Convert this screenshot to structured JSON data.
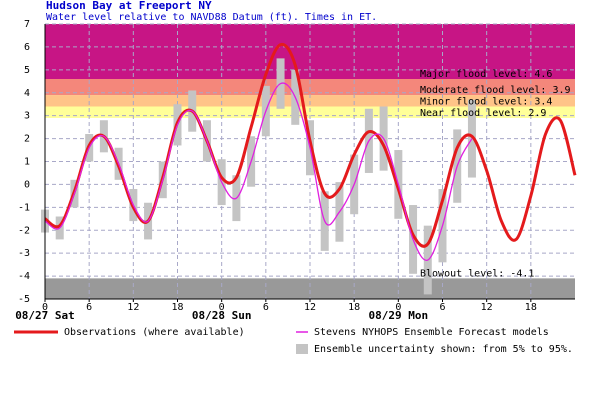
{
  "chart_data": {
    "type": "line",
    "title": "Hudson Bay at Freeport NY",
    "subtitle": "Water level relative to NAVD88 Datum (ft). Times in ET.",
    "xlim": [
      0,
      72
    ],
    "ylim": [
      -5,
      7
    ],
    "yticks": [
      -5,
      -4,
      -3,
      -2,
      -1,
      0,
      1,
      2,
      3,
      4,
      5,
      6,
      7
    ],
    "xticks": [
      0,
      6,
      12,
      18,
      {
        "value": 24,
        "label": "0"
      },
      {
        "value": 30,
        "label": "6"
      },
      {
        "value": 36,
        "label": "12"
      },
      {
        "value": 42,
        "label": "18"
      },
      {
        "value": 48,
        "label": "0"
      },
      {
        "value": 54,
        "label": "6"
      },
      {
        "value": 60,
        "label": "12"
      },
      {
        "value": 66,
        "label": "18"
      }
    ],
    "day_labels": [
      {
        "value": 0,
        "label": "08/27 Sat"
      },
      {
        "value": 24,
        "label": "08/28 Sun"
      },
      {
        "value": 48,
        "label": "08/29 Mon"
      }
    ],
    "grid": true,
    "flood_levels": [
      {
        "label": "Major flood level: 4.6",
        "value": 4.6,
        "color": "#c71585"
      },
      {
        "label": "Moderate flood level: 3.9",
        "value": 3.9,
        "color": "#f4877b"
      },
      {
        "label": "Minor flood level: 3.4",
        "value": 3.4,
        "color": "#ffc488"
      },
      {
        "label": "Near flood level: 2.9",
        "value": 2.9,
        "color": "#ffff99"
      }
    ],
    "blowout_level": {
      "label": "Blowout level: -4.1",
      "value": -4.1,
      "color": "#999999"
    },
    "series": [
      {
        "name": "Observations (where available)",
        "color": "#e41a1c",
        "x": [
          0,
          2,
          4,
          6,
          8,
          10,
          12,
          14,
          16,
          18,
          20,
          22,
          24,
          26,
          28,
          30,
          32,
          34,
          36,
          38,
          40,
          42,
          44,
          46,
          48,
          50,
          52,
          54,
          56,
          58,
          60,
          62,
          64,
          66,
          68,
          70,
          72
        ],
        "values": [
          -1.5,
          -1.8,
          -0.3,
          1.7,
          2.1,
          0.8,
          -1.0,
          -1.6,
          0.3,
          2.7,
          3.2,
          1.9,
          0.3,
          0.3,
          2.5,
          4.8,
          6.1,
          5.2,
          1.9,
          -0.4,
          -0.2,
          1.3,
          2.3,
          1.7,
          -0.2,
          -2.2,
          -2.6,
          -0.7,
          1.6,
          2.1,
          0.6,
          -1.6,
          -2.4,
          -0.5,
          2.2,
          2.8,
          0.4
        ]
      },
      {
        "name": "Stevens NYHOPS Ensemble Forecast models",
        "color": "#e020e0",
        "x": [
          0,
          2,
          4,
          6,
          8,
          10,
          12,
          14,
          16,
          18,
          20,
          22,
          24,
          26,
          28,
          30,
          32,
          34,
          36,
          38,
          40,
          42,
          44,
          46,
          48,
          50,
          52,
          54,
          56,
          58
        ],
        "values": [
          -1.6,
          -1.9,
          -0.4,
          1.6,
          2.1,
          0.9,
          -0.9,
          -1.6,
          0.2,
          2.6,
          3.2,
          1.9,
          0.1,
          -0.6,
          1.0,
          3.2,
          4.4,
          3.8,
          1.6,
          -1.6,
          -1.2,
          0.0,
          1.9,
          2.0,
          0.0,
          -2.4,
          -3.3,
          -1.8,
          0.8,
          2.0
        ]
      },
      {
        "name": "Ensemble uncertainty shown: from 5% to 95%.",
        "color": "#c4c4c4",
        "x": [
          0,
          2,
          4,
          6,
          8,
          10,
          12,
          14,
          16,
          18,
          20,
          22,
          24,
          26,
          28,
          30,
          32,
          34,
          36,
          38,
          40,
          42,
          44,
          46,
          48,
          50,
          52,
          54,
          56,
          58
        ],
        "low": [
          -2.1,
          -2.4,
          -1.0,
          1.0,
          1.4,
          0.2,
          -1.6,
          -2.4,
          -0.6,
          1.7,
          2.3,
          1.0,
          -0.9,
          -1.6,
          -0.1,
          2.1,
          3.3,
          2.6,
          0.4,
          -2.9,
          -2.5,
          -1.3,
          0.5,
          0.6,
          -1.5,
          -3.9,
          -4.8,
          -3.4,
          -0.8,
          0.3
        ],
        "high": [
          -1.1,
          -1.4,
          0.2,
          2.2,
          2.8,
          1.6,
          -0.2,
          -0.8,
          1.0,
          3.5,
          4.1,
          2.8,
          1.1,
          0.4,
          2.1,
          4.3,
          5.5,
          5.0,
          2.8,
          -0.3,
          0.1,
          1.3,
          3.3,
          3.4,
          1.5,
          -0.9,
          -1.8,
          -0.2,
          2.4,
          3.7
        ]
      }
    ]
  }
}
